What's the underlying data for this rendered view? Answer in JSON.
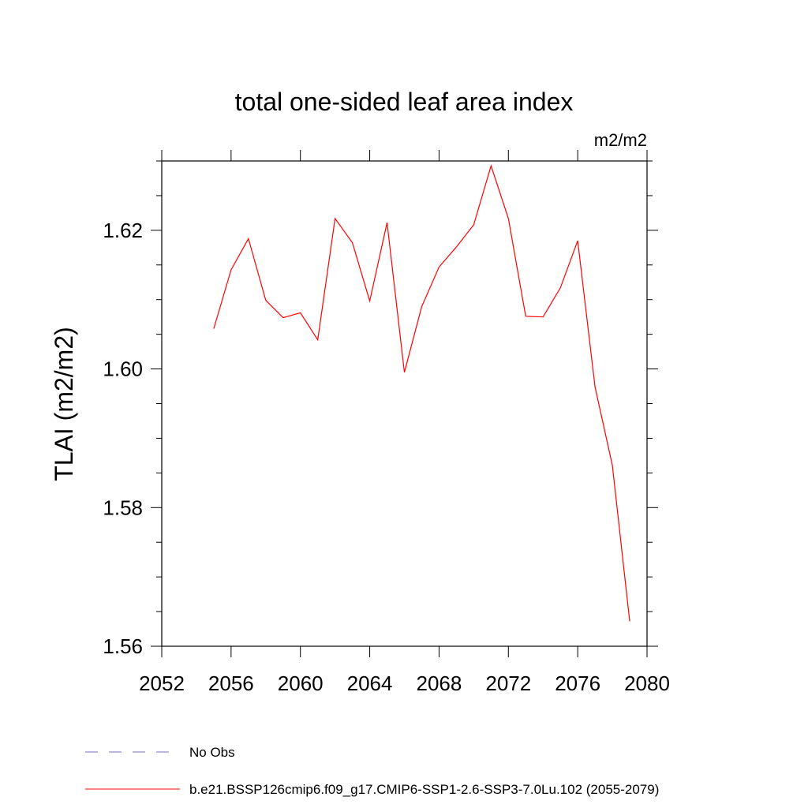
{
  "chart_data": {
    "type": "line",
    "title": "total one-sided leaf area index",
    "units": "m2/m2",
    "ylabel": "TLAI  (m2/m2)",
    "xlabel": "",
    "xlim": [
      2052,
      2080
    ],
    "ylim": [
      1.56,
      1.63
    ],
    "xticks": [
      "2052",
      "2056",
      "2060",
      "2064",
      "2068",
      "2072",
      "2076",
      "2080"
    ],
    "yticks": [
      "1.56",
      "1.58",
      "1.60",
      "1.62"
    ],
    "series": [
      {
        "name": "b.e21.BSSP126cmip6.f09_g17.CMIP6-SSP1-2.6-SSP3-7.0Lu.102 (2055-2079)",
        "color": "#ff0000",
        "x": [
          2055,
          2056,
          2057,
          2058,
          2059,
          2060,
          2061,
          2062,
          2063,
          2064,
          2065,
          2066,
          2067,
          2068,
          2069,
          2070,
          2071,
          2072,
          2073,
          2074,
          2075,
          2076,
          2077,
          2078,
          2079
        ],
        "y": [
          1.6058,
          1.6143,
          1.6188,
          1.6099,
          1.6074,
          1.6081,
          1.6042,
          1.6217,
          1.6182,
          1.6098,
          1.6211,
          1.5995,
          1.609,
          1.6147,
          1.6176,
          1.6208,
          1.6293,
          1.6217,
          1.6076,
          1.6075,
          1.6117,
          1.6185,
          1.5974,
          1.5861,
          1.5636
        ]
      }
    ],
    "legend": {
      "position": "bottom",
      "entries": [
        {
          "label": "No Obs",
          "color": "#7a6fbf",
          "dash": true
        },
        {
          "label": "b.e21.BSSP126cmip6.f09_g17.CMIP6-SSP1-2.6-SSP3-7.0Lu.102 (2055-2079)",
          "color": "#ff0000",
          "dash": false
        }
      ]
    },
    "grid": false
  }
}
